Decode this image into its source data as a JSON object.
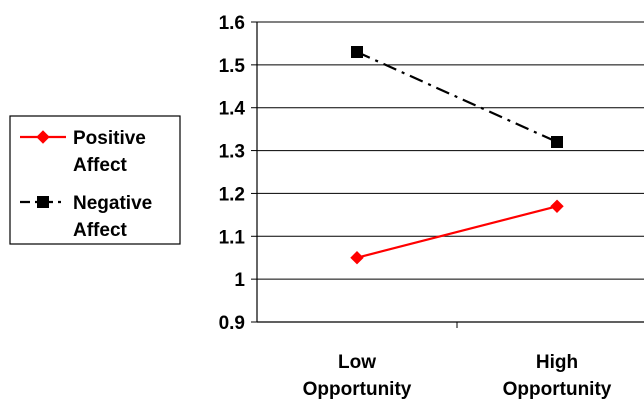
{
  "chart_data": {
    "type": "line",
    "title": "",
    "xlabel": "",
    "ylabel": "",
    "categories": [
      [
        "Low",
        "Opportunity"
      ],
      [
        "High",
        "Opportunity"
      ]
    ],
    "ylim": [
      0.9,
      1.6
    ],
    "yticks": [
      0.9,
      1,
      1.1,
      1.2,
      1.3,
      1.4,
      1.5,
      1.6
    ],
    "ytick_labels": [
      "0.9",
      "1",
      "1.1",
      "1.2",
      "1.3",
      "1.4",
      "1.5",
      "1.6"
    ],
    "grid": true,
    "legend_position": "left",
    "series": [
      {
        "name": [
          "Positive",
          "Affect"
        ],
        "values": [
          1.05,
          1.17
        ],
        "color": "#ff0000",
        "marker": "diamond",
        "line_style": "solid"
      },
      {
        "name": [
          "Negative",
          "Affect"
        ],
        "values": [
          1.53,
          1.32
        ],
        "color": "#000000",
        "marker": "square",
        "line_style": "dash-dot"
      }
    ]
  }
}
